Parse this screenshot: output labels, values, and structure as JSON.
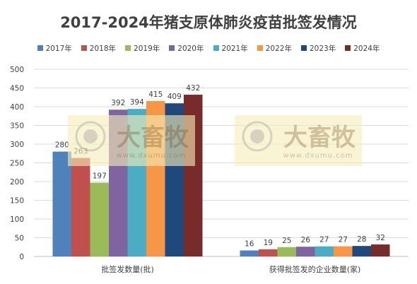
{
  "chart_data": {
    "type": "bar",
    "title": "2017-2024年猪支原体肺炎疫苗批签发情况",
    "xlabel": "",
    "ylabel": "",
    "categories": [
      "批签发数量(批)",
      "获得批签发的企业数量(家)"
    ],
    "ylim": [
      0,
      500
    ],
    "yticks": [
      0,
      50,
      100,
      150,
      200,
      250,
      300,
      350,
      400,
      450,
      500
    ],
    "grid": true,
    "legend": "top",
    "data_labels": true,
    "series": [
      {
        "name": "2017年",
        "color": "#4f81bd",
        "values": [
          280,
          16
        ]
      },
      {
        "name": "2018年",
        "color": "#c0504d",
        "values": [
          263,
          19
        ]
      },
      {
        "name": "2019年",
        "color": "#9bbb59",
        "values": [
          197,
          25
        ]
      },
      {
        "name": "2020年",
        "color": "#8064a2",
        "values": [
          392,
          26
        ]
      },
      {
        "name": "2021年",
        "color": "#4bacc6",
        "values": [
          394,
          27
        ]
      },
      {
        "name": "2022年",
        "color": "#f79646",
        "values": [
          415,
          27
        ]
      },
      {
        "name": "2023年",
        "color": "#1f497d",
        "values": [
          409,
          28
        ]
      },
      {
        "name": "2024年",
        "color": "#772c2a",
        "values": [
          432,
          32
        ]
      }
    ]
  },
  "watermark": {
    "text": "大畜牧",
    "subtext": "www.dxumu.com",
    "colors": {
      "box": "#f6efb8",
      "text": "#bfa977",
      "logo": "#c9c1a8"
    }
  }
}
